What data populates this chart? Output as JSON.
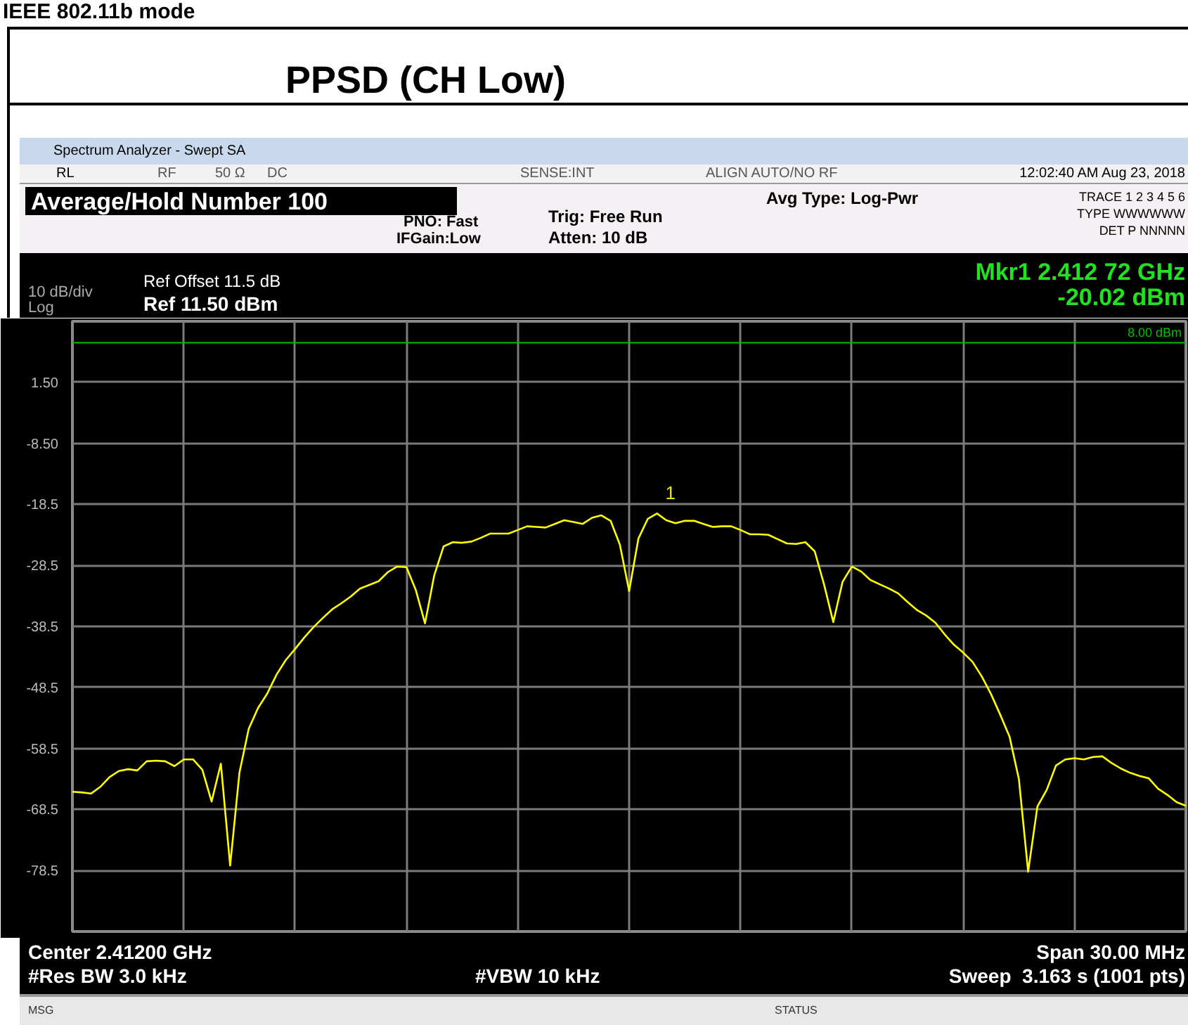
{
  "chart_data": {
    "type": "line",
    "title": "PPSD (CH Low)",
    "subtitle": "IEEE 802.11b mode",
    "categories": [
      null,
      null,
      null,
      null,
      null,
      null,
      null,
      null,
      null,
      null,
      null,
      null,
      null,
      null,
      null,
      null,
      null,
      null,
      null,
      null,
      null,
      null,
      null,
      null,
      null,
      null,
      null,
      null,
      null,
      null,
      null,
      null,
      null,
      null,
      null,
      null,
      null,
      null,
      null,
      null,
      null,
      null,
      null,
      null,
      null,
      null,
      null,
      null,
      null,
      null,
      null,
      null,
      null,
      null,
      null,
      null,
      null,
      null,
      null,
      null,
      null,
      null,
      null,
      null,
      null,
      null,
      null,
      null,
      null,
      null,
      null,
      null,
      null,
      null,
      null,
      null,
      null,
      null,
      null,
      null,
      null,
      null,
      null,
      null,
      null,
      null,
      null,
      null,
      null,
      null,
      null,
      null,
      null,
      null,
      null,
      null,
      null,
      null,
      null,
      null,
      null,
      null,
      null,
      null,
      null,
      null,
      null,
      null,
      null,
      null,
      null,
      null,
      null,
      null,
      null,
      null,
      null,
      null,
      null,
      null,
      null
    ],
    "series": [
      {
        "color": "#ffff00",
        "values": [
          -65.6,
          -65.7,
          -65.9,
          -64.8,
          -63.2,
          -62.2,
          -61.9,
          -62.1,
          -60.6,
          -60.5,
          -60.6,
          -61.4,
          -60.3,
          -60.3,
          -62.0,
          -67.2,
          -61.0,
          -77.7,
          -62.5,
          -55.3,
          -51.9,
          -49.5,
          -46.4,
          -44.0,
          -42.2,
          -40.3,
          -38.6,
          -37.1,
          -35.7,
          -34.7,
          -33.6,
          -32.3,
          -31.7,
          -31.1,
          -29.6,
          -28.7,
          -28.8,
          -32.5,
          -38.0,
          -30.1,
          -25.4,
          -24.7,
          -24.8,
          -24.6,
          -24.0,
          -23.3,
          -23.3,
          -23.3,
          -22.7,
          -22.1,
          -22.2,
          -22.3,
          -21.7,
          -21.1,
          -21.4,
          -21.7,
          -20.7,
          -20.3,
          -21.2,
          -25.1,
          -32.7,
          -24.1,
          -20.9,
          -20.0,
          -21.1,
          -21.6,
          -21.2,
          -21.2,
          -21.7,
          -22.2,
          -22.1,
          -22.1,
          -22.7,
          -23.4,
          -23.4,
          -23.5,
          -24.2,
          -24.9,
          -25.0,
          -24.7,
          -26.2,
          -31.6,
          -37.8,
          -31.2,
          -28.7,
          -29.5,
          -30.9,
          -31.6,
          -32.3,
          -33.1,
          -34.5,
          -35.8,
          -36.7,
          -37.9,
          -39.8,
          -41.5,
          -42.8,
          -44.3,
          -46.7,
          -49.6,
          -53.0,
          -56.6,
          -63.5,
          -78.7,
          -68.0,
          -65.3,
          -61.3,
          -60.3,
          -60.1,
          -60.3,
          -59.9,
          -59.8,
          -60.9,
          -61.8,
          -62.5,
          -63.0,
          -63.4,
          -65.1,
          -66.1,
          -67.3,
          -67.9
        ]
      }
    ],
    "ylim": [
      -88.5,
      11.5
    ],
    "yticks": [
      {
        "value": -88.5,
        "label": null
      },
      {
        "value": -78.5,
        "label": "-78.5"
      },
      {
        "value": -68.5,
        "label": "-68.5"
      },
      {
        "value": -58.5,
        "label": "-58.5"
      },
      {
        "value": -48.5,
        "label": "-48.5"
      },
      {
        "value": -38.5,
        "label": "-38.5"
      },
      {
        "value": -28.5,
        "label": "-28.5"
      },
      {
        "value": -18.5,
        "label": "-18.5"
      },
      {
        "value": -8.5,
        "label": "-8.50"
      },
      {
        "value": 1.5,
        "label": "1.50"
      },
      {
        "value": 11.5,
        "label": null
      }
    ],
    "grid": true,
    "tick_labels": "y",
    "ref_lines": [
      {
        "axis": "y",
        "value": 8,
        "label": "8.00 dBm",
        "color": "#00c000"
      }
    ],
    "annotations": [
      "1",
      "Spectrum Analyzer - Swept SA",
      "RL",
      "RF",
      "50 Ω",
      "DC",
      "SENSE:INT",
      "ALIGN AUTO/NO RF",
      "12:02:40 AM Aug 23, 2018",
      "Average/Hold Number 100",
      "PNO: Fast",
      "IFGain:Low",
      "Trig: Free Run",
      "Atten: 10 dB",
      "Avg Type: Log-Pwr",
      "TRACE 1 2 3 4 5 6",
      "TYPE WWWWWW",
      "DET P NNNNN",
      "Ref Offset 11.5 dB",
      "Ref 11.50 dBm",
      "10 dB/div",
      "Log",
      "Mkr1 2.412 72 GHz",
      "-20.02 dBm",
      "Center 2.41200 GHz",
      "#Res BW 3.0 kHz",
      "#VBW 10 kHz",
      "Span 30.00 MHz",
      "Sweep  3.163 s (1001 pts)",
      "MSG",
      "STATUS"
    ]
  }
}
